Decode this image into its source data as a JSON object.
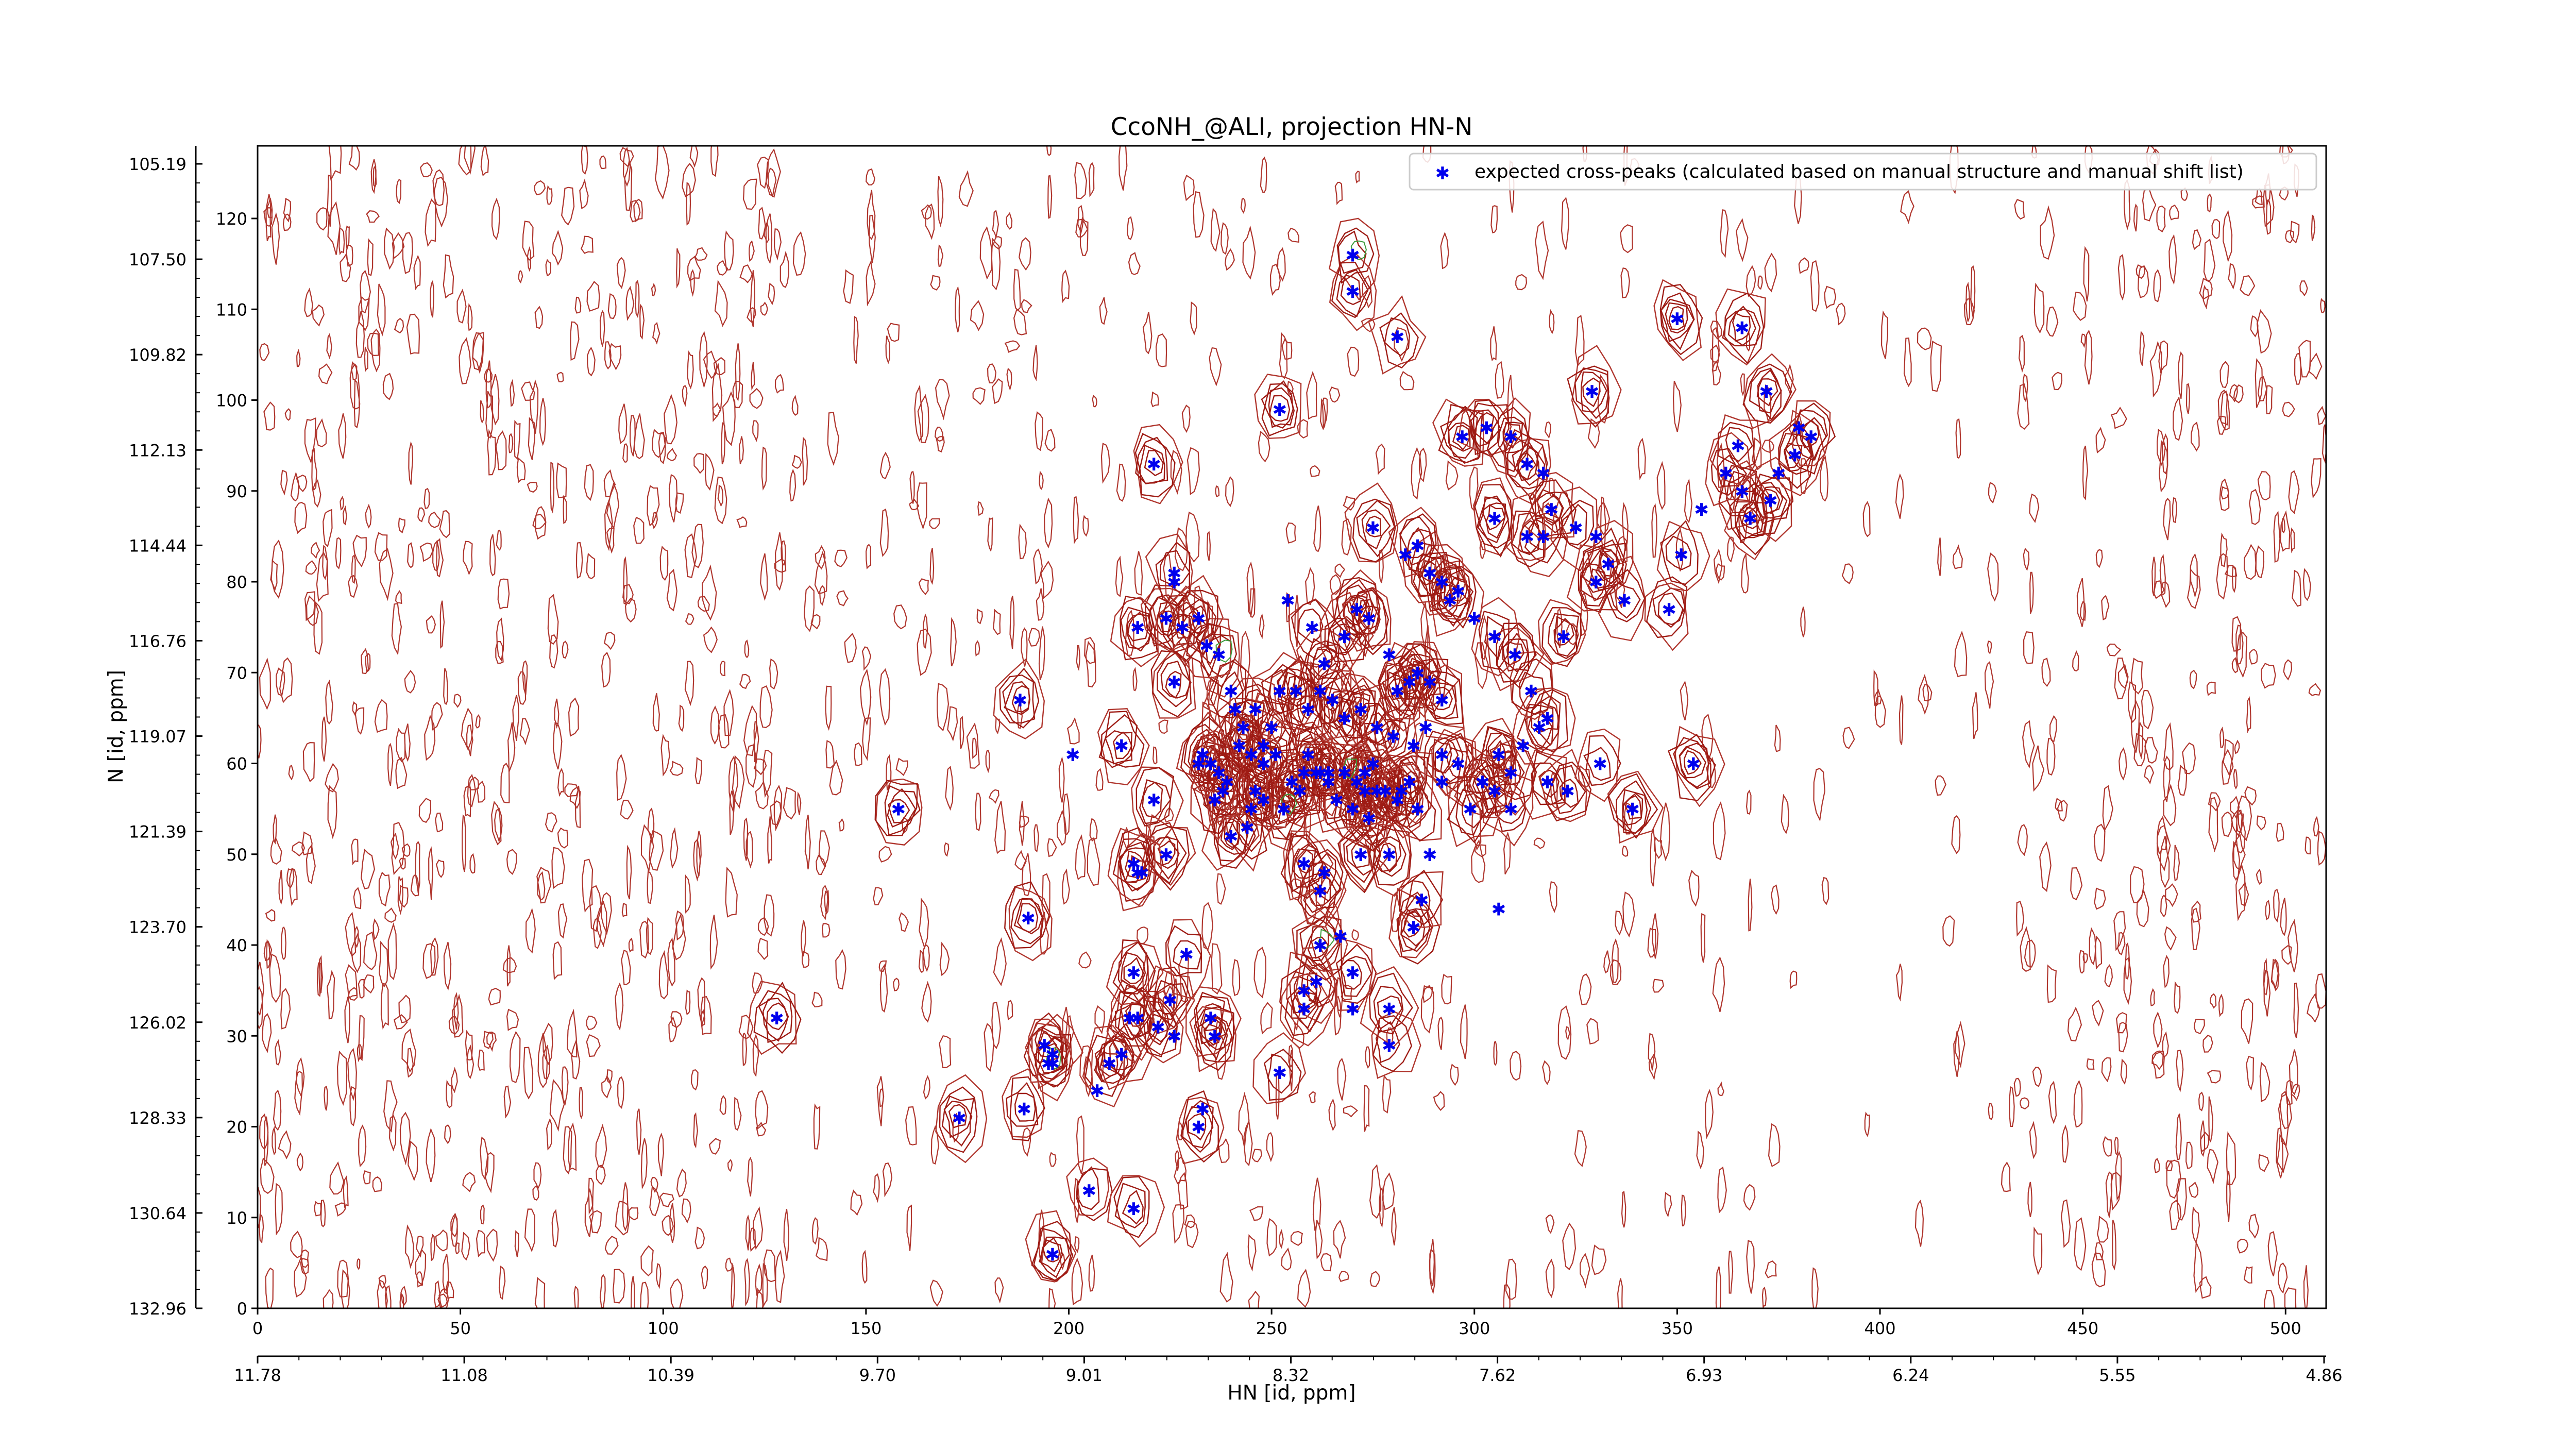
{
  "chart_data": {
    "type": "scatter",
    "title": "CcoNH_@ALI, projection HN-N",
    "xlabel": "HN [id, ppm]",
    "ylabel": "N [id, ppm]",
    "xlim": [
      0,
      510
    ],
    "ylim": [
      0,
      128
    ],
    "x_ticks_index": [
      "0",
      "50",
      "100",
      "150",
      "200",
      "250",
      "300",
      "350",
      "400",
      "450",
      "500"
    ],
    "x_ticks_ppm": [
      "11.78",
      "11.08",
      "10.39",
      "9.70",
      "9.01",
      "8.32",
      "7.62",
      "6.93",
      "6.24",
      "5.55",
      "4.86"
    ],
    "y_ticks_index": [
      "0",
      "10",
      "20",
      "30",
      "40",
      "50",
      "60",
      "70",
      "80",
      "90",
      "100",
      "110",
      "120"
    ],
    "y_ticks_ppm": [
      "132.96",
      "130.64",
      "128.33",
      "126.02",
      "123.70",
      "121.39",
      "119.07",
      "116.76",
      "114.44",
      "112.13",
      "109.82",
      "107.50",
      "105.19"
    ],
    "legend_location": "upper-right",
    "grid": false,
    "colors": {
      "peaks": "#0000ee",
      "contour_dense": "#9e1b14",
      "contour_noise": "#b0362e",
      "contour_minor": "#3a9a3a"
    },
    "series": [
      {
        "name": "expected cross-peaks (calculated based on manual structure and manual shift list)",
        "marker": "star",
        "points": [
          [
            270,
            116
          ],
          [
            270,
            112
          ],
          [
            281,
            107
          ],
          [
            252,
            99
          ],
          [
            221,
            93
          ],
          [
            226,
            80
          ],
          [
            228,
            75
          ],
          [
            224,
            76
          ],
          [
            217,
            75
          ],
          [
            226,
            69
          ],
          [
            188,
            67
          ],
          [
            201,
            61
          ],
          [
            213,
            62
          ],
          [
            221,
            56
          ],
          [
            224,
            50
          ],
          [
            217,
            48
          ],
          [
            216,
            49
          ],
          [
            218,
            48
          ],
          [
            190,
            43
          ],
          [
            158,
            55
          ],
          [
            128,
            32
          ],
          [
            173,
            21
          ],
          [
            189,
            22
          ],
          [
            195,
            27
          ],
          [
            194,
            29
          ],
          [
            196,
            28
          ],
          [
            196,
            27
          ],
          [
            205,
            13
          ],
          [
            196,
            6
          ],
          [
            207,
            24
          ],
          [
            210,
            27
          ],
          [
            213,
            28
          ],
          [
            215,
            32
          ],
          [
            217,
            32
          ],
          [
            222,
            31
          ],
          [
            226,
            30
          ],
          [
            225,
            34
          ],
          [
            216,
            37
          ],
          [
            229,
            39
          ],
          [
            235,
            32
          ],
          [
            236,
            30
          ],
          [
            233,
            22
          ],
          [
            232,
            20
          ],
          [
            216,
            11
          ],
          [
            252,
            26
          ],
          [
            258,
            35
          ],
          [
            262,
            40
          ],
          [
            267,
            41
          ],
          [
            262,
            46
          ],
          [
            263,
            48
          ],
          [
            261,
            36
          ],
          [
            258,
            33
          ],
          [
            270,
            37
          ],
          [
            270,
            33
          ],
          [
            279,
            33
          ],
          [
            279,
            29
          ],
          [
            285,
            42
          ],
          [
            287,
            45
          ],
          [
            279,
            50
          ],
          [
            289,
            50
          ],
          [
            282,
            57
          ],
          [
            273,
            57
          ],
          [
            274,
            54
          ],
          [
            270,
            55
          ],
          [
            266,
            56
          ],
          [
            264,
            58
          ],
          [
            262,
            59
          ],
          [
            259,
            61
          ],
          [
            257,
            57
          ],
          [
            253,
            55
          ],
          [
            248,
            56
          ],
          [
            245,
            55
          ],
          [
            244,
            53
          ],
          [
            240,
            52
          ],
          [
            236,
            56
          ],
          [
            238,
            57
          ],
          [
            239,
            58
          ],
          [
            232,
            60
          ],
          [
            233,
            61
          ],
          [
            235,
            60
          ],
          [
            237,
            59
          ],
          [
            242,
            62
          ],
          [
            245,
            61
          ],
          [
            248,
            62
          ],
          [
            250,
            64
          ],
          [
            251,
            61
          ],
          [
            248,
            60
          ],
          [
            246,
            57
          ],
          [
            255,
            58
          ],
          [
            258,
            59
          ],
          [
            261,
            59
          ],
          [
            264,
            59
          ],
          [
            268,
            59
          ],
          [
            271,
            58
          ],
          [
            273,
            59
          ],
          [
            275,
            60
          ],
          [
            276,
            57
          ],
          [
            278,
            57
          ],
          [
            281,
            56
          ],
          [
            284,
            58
          ],
          [
            286,
            55
          ],
          [
            285,
            62
          ],
          [
            280,
            63
          ],
          [
            276,
            64
          ],
          [
            272,
            66
          ],
          [
            268,
            65
          ],
          [
            265,
            67
          ],
          [
            262,
            68
          ],
          [
            259,
            66
          ],
          [
            256,
            68
          ],
          [
            252,
            68
          ],
          [
            246,
            66
          ],
          [
            243,
            64
          ],
          [
            241,
            66
          ],
          [
            240,
            68
          ],
          [
            237,
            72
          ],
          [
            234,
            73
          ],
          [
            232,
            76
          ],
          [
            226,
            81
          ],
          [
            254,
            78
          ],
          [
            260,
            75
          ],
          [
            263,
            71
          ],
          [
            268,
            74
          ],
          [
            271,
            77
          ],
          [
            274,
            76
          ],
          [
            279,
            72
          ],
          [
            281,
            68
          ],
          [
            284,
            69
          ],
          [
            286,
            70
          ],
          [
            289,
            69
          ],
          [
            292,
            67
          ],
          [
            288,
            64
          ],
          [
            292,
            61
          ],
          [
            296,
            60
          ],
          [
            302,
            58
          ],
          [
            306,
            61
          ],
          [
            309,
            59
          ],
          [
            312,
            62
          ],
          [
            316,
            64
          ],
          [
            318,
            65
          ],
          [
            314,
            68
          ],
          [
            310,
            72
          ],
          [
            305,
            74
          ],
          [
            300,
            76
          ],
          [
            294,
            78
          ],
          [
            296,
            79
          ],
          [
            292,
            80
          ],
          [
            289,
            81
          ],
          [
            286,
            84
          ],
          [
            283,
            83
          ],
          [
            275,
            86
          ],
          [
            297,
            96
          ],
          [
            303,
            97
          ],
          [
            309,
            96
          ],
          [
            313,
            93
          ],
          [
            317,
            92
          ],
          [
            319,
            88
          ],
          [
            317,
            85
          ],
          [
            313,
            85
          ],
          [
            305,
            87
          ],
          [
            325,
            86
          ],
          [
            330,
            85
          ],
          [
            333,
            82
          ],
          [
            330,
            80
          ],
          [
            337,
            78
          ],
          [
            348,
            77
          ],
          [
            351,
            83
          ],
          [
            356,
            88
          ],
          [
            362,
            92
          ],
          [
            365,
            95
          ],
          [
            366,
            90
          ],
          [
            368,
            87
          ],
          [
            373,
            89
          ],
          [
            375,
            92
          ],
          [
            379,
            94
          ],
          [
            383,
            96
          ],
          [
            366,
            108
          ],
          [
            350,
            109
          ],
          [
            372,
            101
          ],
          [
            380,
            97
          ],
          [
            329,
            101
          ],
          [
            322,
            74
          ],
          [
            309,
            55
          ],
          [
            305,
            57
          ],
          [
            299,
            55
          ],
          [
            292,
            58
          ],
          [
            318,
            58
          ],
          [
            323,
            57
          ],
          [
            331,
            60
          ],
          [
            339,
            55
          ],
          [
            354,
            60
          ],
          [
            306,
            44
          ],
          [
            258,
            49
          ],
          [
            272,
            50
          ]
        ]
      }
    ]
  }
}
